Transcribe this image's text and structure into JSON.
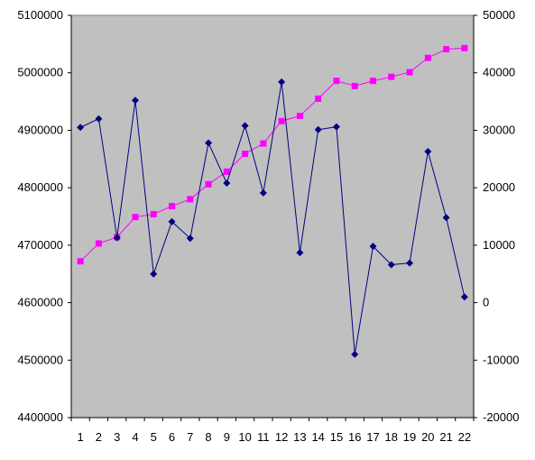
{
  "chart_data": {
    "type": "line",
    "title": "",
    "xlabel": "",
    "ylabel": "",
    "ylabel_right": "",
    "grid": false,
    "legend": "none",
    "plot_background": "#c0c0c0",
    "x": [
      "1",
      "2",
      "3",
      "4",
      "5",
      "6",
      "7",
      "8",
      "9",
      "10",
      "11",
      "12",
      "13",
      "14",
      "15",
      "16",
      "17",
      "18",
      "19",
      "20",
      "21",
      "22"
    ],
    "y_left": {
      "min": 4400000,
      "max": 5100000,
      "step": 100000,
      "ticks": [
        "4400000",
        "4500000",
        "4600000",
        "4700000",
        "4800000",
        "4900000",
        "5000000",
        "5100000"
      ]
    },
    "y_right": {
      "min": -20000,
      "max": 50000,
      "step": 10000,
      "ticks": [
        "-20000",
        "-10000",
        "0",
        "10000",
        "20000",
        "30000",
        "40000",
        "50000"
      ]
    },
    "series": [
      {
        "axis": "left",
        "color": "#ff00ff",
        "marker": "square",
        "values": [
          4672000,
          4703000,
          4714000,
          4749000,
          4754000,
          4768000,
          4780000,
          4806000,
          4828000,
          4859000,
          4877000,
          4916000,
          4925000,
          4955000,
          4986000,
          4977000,
          4986000,
          4993000,
          5001000,
          5026000,
          5041000,
          5043000
        ]
      },
      {
        "axis": "right",
        "color": "#000080",
        "marker": "diamond",
        "values": [
          30500,
          32000,
          11300,
          35200,
          5000,
          14100,
          11200,
          27800,
          20800,
          30800,
          19100,
          38400,
          8700,
          30100,
          30600,
          -9000,
          9800,
          6600,
          6900,
          26300,
          14800,
          1000
        ]
      }
    ]
  }
}
